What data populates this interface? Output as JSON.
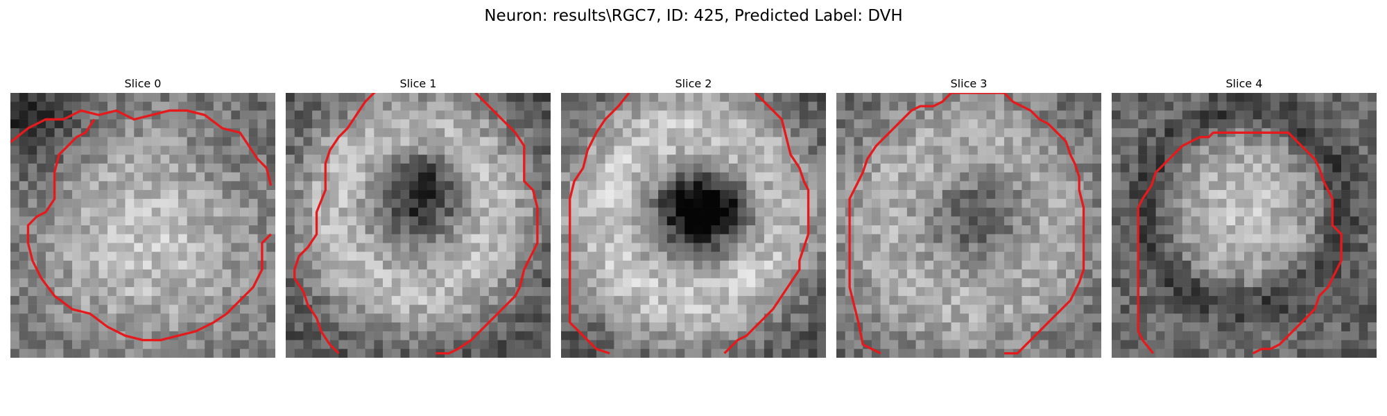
{
  "figure": {
    "title": "Neuron: results\\RGC7, ID: 425, Predicted Label: DVH"
  },
  "slices": [
    {
      "title": "Slice 0",
      "pattern": "bright-lower-blob"
    },
    {
      "title": "Slice 1",
      "pattern": "ring-dark-center"
    },
    {
      "title": "Slice 2",
      "pattern": "ring-dark-center-strong"
    },
    {
      "title": "Slice 3",
      "pattern": "ring-mottled"
    },
    {
      "title": "Slice 4",
      "pattern": "bright-disc"
    }
  ],
  "colors": {
    "contour": "#e41a1c",
    "background": "#ffffff"
  }
}
